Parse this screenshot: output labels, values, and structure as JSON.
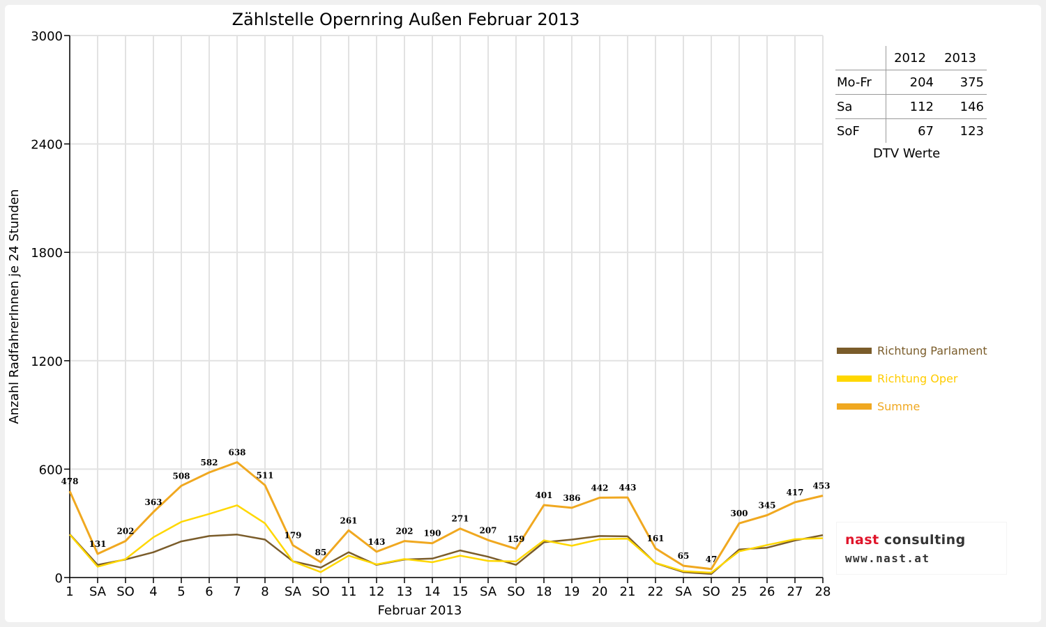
{
  "chart_data": {
    "type": "line",
    "title": "Zählstelle Opernring Außen Februar 2013",
    "xlabel": "Februar 2013",
    "ylabel": "Anzahl RadfahrerInnen je 24 Stunden",
    "ylim": [
      0,
      3000
    ],
    "yticks": [
      "0",
      "600",
      "1200",
      "1800",
      "2400",
      "3000"
    ],
    "grid": true,
    "legend_position": "right",
    "categories": [
      "1",
      "SA",
      "SO",
      "4",
      "5",
      "6",
      "7",
      "8",
      "SA",
      "SO",
      "11",
      "12",
      "13",
      "14",
      "15",
      "SA",
      "SO",
      "18",
      "19",
      "20",
      "21",
      "22",
      "SA",
      "SO",
      "25",
      "26",
      "27",
      "28"
    ],
    "weekend_red": [
      false,
      false,
      true,
      false,
      false,
      false,
      false,
      false,
      false,
      true,
      false,
      false,
      false,
      false,
      false,
      false,
      true,
      false,
      false,
      false,
      false,
      false,
      false,
      true,
      false,
      false,
      false,
      false
    ],
    "series": [
      {
        "name": "Richtung Parlament",
        "color": "#7a5c2a",
        "values": [
          240,
          70,
          100,
          140,
          200,
          230,
          238,
          210,
          90,
          55,
          140,
          70,
          100,
          105,
          150,
          115,
          70,
          195,
          210,
          230,
          228,
          80,
          30,
          20,
          155,
          165,
          205,
          235
        ]
      },
      {
        "name": "Richtung Oper",
        "color": "#ffd700",
        "values": [
          238,
          60,
          102,
          223,
          308,
          352,
          400,
          300,
          89,
          30,
          121,
          73,
          102,
          85,
          121,
          92,
          89,
          206,
          176,
          212,
          215,
          81,
          35,
          27,
          145,
          180,
          212,
          218
        ]
      },
      {
        "name": "Summe",
        "color": "#f0a820",
        "values": [
          478,
          131,
          202,
          363,
          508,
          582,
          638,
          511,
          179,
          85,
          261,
          143,
          202,
          190,
          271,
          207,
          159,
          401,
          386,
          442,
          443,
          161,
          65,
          47,
          300,
          345,
          417,
          453
        ]
      }
    ],
    "data_labels": [
      "478",
      "131",
      "202",
      "363",
      "508",
      "582",
      "638",
      "511",
      "179",
      "85",
      "261",
      "143",
      "202",
      "190",
      "271",
      "207",
      "159",
      "401",
      "386",
      "442",
      "443",
      "161",
      "65",
      "47",
      "300",
      "345",
      "417",
      "453"
    ]
  },
  "dtv_table": {
    "headers": [
      "",
      "2012",
      "2013"
    ],
    "rows": [
      {
        "label": "Mo-Fr",
        "v2012": "204",
        "v2013": "375"
      },
      {
        "label": "Sa",
        "v2012": "112",
        "v2013": "146"
      },
      {
        "label": "SoF",
        "v2012": "67",
        "v2013": "123"
      }
    ],
    "caption": "DTV Werte"
  },
  "legend": [
    {
      "label": "Richtung Parlament",
      "color": "#7a5c2a"
    },
    {
      "label": "Richtung Oper",
      "color": "#ffd700"
    },
    {
      "label": "Summe",
      "color": "#f0a820"
    }
  ],
  "logo": {
    "name_part1": "nast",
    "name_part2": "consulting",
    "url": "www.nast.at",
    "color_part1": "#e0142a",
    "color_part2": "#333333"
  }
}
